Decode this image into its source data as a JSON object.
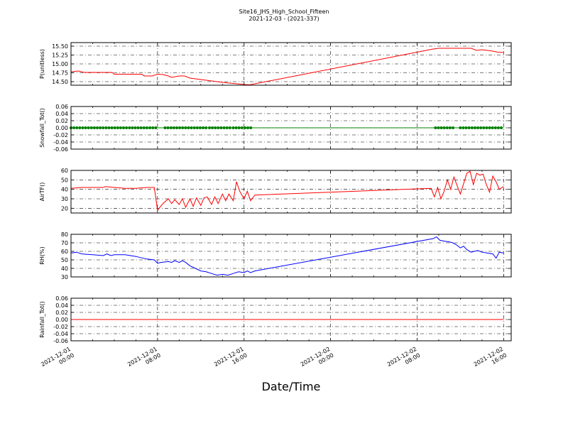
{
  "chart_data": {
    "title_line1": "Site16_JHS_High_School_Fifteen",
    "title_line2": "2021-12-03 - (2021-337)",
    "xlabel": "Date/Time",
    "x_range": [
      "2021-12-01 00:00",
      "2021-12-02 16:00"
    ],
    "x_ticks": [
      {
        "line1": "2021-12-01",
        "line2": "00:00",
        "hours": 0
      },
      {
        "line1": "2021-12-01",
        "line2": "08:00",
        "hours": 8
      },
      {
        "line1": "2021-12-01",
        "line2": "16:00",
        "hours": 16
      },
      {
        "line1": "2021-12-02",
        "line2": "00:00",
        "hours": 24
      },
      {
        "line1": "2021-12-02",
        "line2": "08:00",
        "hours": 32
      },
      {
        "line1": "2021-12-02",
        "line2": "16:00",
        "hours": 40
      }
    ],
    "grid": true,
    "panels": [
      {
        "type": "line",
        "ylabel": "P(unitless)",
        "ylim": [
          14.4,
          15.6
        ],
        "yticks": [
          "14.50",
          "14.75",
          "15.00",
          "15.25",
          "15.50"
        ],
        "ytick_values": [
          14.5,
          14.75,
          15.0,
          15.25,
          15.5
        ],
        "color": "#ff0000",
        "marker": false,
        "x": [
          0,
          0.7,
          1.2,
          2,
          3,
          3.8,
          4,
          5,
          6.5,
          6.8,
          7.5,
          8,
          8.5,
          9,
          9.3,
          10,
          10.5,
          11,
          12,
          13,
          14,
          15,
          16,
          16.5,
          33.5,
          34,
          36,
          37,
          37.5,
          38,
          39,
          39.5,
          40
        ],
        "y": [
          14.78,
          14.8,
          14.76,
          14.76,
          14.76,
          14.76,
          14.71,
          14.71,
          14.71,
          14.66,
          14.66,
          14.71,
          14.7,
          14.66,
          14.62,
          14.66,
          14.66,
          14.6,
          14.56,
          14.52,
          14.48,
          14.45,
          14.42,
          14.41,
          15.42,
          15.44,
          15.44,
          15.44,
          15.38,
          15.4,
          15.36,
          15.33,
          15.32
        ]
      },
      {
        "type": "scatter-line",
        "ylabel": "Snowfall_Tot()",
        "ylim": [
          -0.06,
          0.06
        ],
        "yticks": [
          "-0.06",
          "-0.04",
          "-0.02",
          "0.00",
          "0.02",
          "0.04",
          "0.06"
        ],
        "ytick_values": [
          -0.06,
          -0.04,
          -0.02,
          0.0,
          0.02,
          0.04,
          0.06
        ],
        "color": "#008000",
        "marker": true,
        "x": [
          0,
          40
        ],
        "y": [
          0,
          0
        ],
        "marker_ranges": [
          [
            0,
            8
          ],
          [
            8.7,
            12.7
          ],
          [
            12.8,
            14.7
          ],
          [
            15,
            16.8
          ],
          [
            33.7,
            35.5
          ],
          [
            36,
            40
          ]
        ],
        "marker_step": 0.27
      },
      {
        "type": "line",
        "ylabel": "AirTF()",
        "ylim": [
          15,
          60
        ],
        "yticks": [
          "20",
          "30",
          "40",
          "50",
          "60"
        ],
        "ytick_values": [
          20,
          30,
          40,
          50,
          60
        ],
        "color": "#ff0000",
        "marker": false,
        "x": [
          0,
          1,
          2,
          3,
          3.2,
          4,
          5,
          6,
          7,
          7.7,
          8,
          8.5,
          9,
          9.3,
          9.6,
          10,
          10.3,
          10.6,
          11,
          11.3,
          11.6,
          12,
          12.3,
          12.6,
          13,
          13.3,
          13.6,
          14,
          14.3,
          14.6,
          15,
          15.3,
          15.6,
          16,
          16.3,
          16.6,
          17,
          33.3,
          33.6,
          33.9,
          34.2,
          34.5,
          34.8,
          35.1,
          35.4,
          35.7,
          36,
          36.3,
          36.6,
          36.9,
          37.2,
          37.5,
          37.8,
          38.1,
          38.4,
          38.7,
          39,
          39.3,
          39.6,
          40
        ],
        "y": [
          41,
          42,
          42,
          42,
          43,
          42,
          41,
          41,
          42,
          42,
          18,
          25,
          30,
          25,
          29,
          24,
          30,
          21,
          30,
          22,
          31,
          23,
          31,
          32,
          24,
          32,
          25,
          35,
          28,
          35,
          28,
          48,
          38,
          30,
          38,
          28,
          34,
          41,
          32,
          42,
          30,
          38,
          50,
          40,
          53,
          44,
          35,
          46,
          57,
          59,
          45,
          57,
          55,
          56,
          45,
          37,
          54,
          48,
          40,
          43
        ]
      },
      {
        "type": "line",
        "ylabel": "RH(%)",
        "ylim": [
          30,
          80
        ],
        "yticks": [
          "30",
          "40",
          "50",
          "60",
          "70",
          "80"
        ],
        "ytick_values": [
          30,
          40,
          50,
          60,
          70,
          80
        ],
        "color": "#0000ff",
        "marker": false,
        "x": [
          0,
          0.5,
          1,
          2,
          3,
          3.3,
          3.7,
          4,
          5,
          6,
          7,
          7.7,
          8,
          8.3,
          9,
          9.3,
          9.6,
          10,
          10.3,
          10.6,
          11,
          11.5,
          12,
          12.5,
          13,
          13.5,
          14,
          14.5,
          15,
          15.5,
          16,
          16.3,
          16.6,
          17,
          33.5,
          33.8,
          34.1,
          34.5,
          35,
          35.3,
          35.6,
          36,
          36.3,
          36.6,
          37,
          37.3,
          37.6,
          38,
          38.5,
          39,
          39.3,
          39.6,
          40
        ],
        "y": [
          58,
          59,
          57,
          56,
          55,
          57,
          55,
          56,
          56,
          54,
          51,
          50,
          46,
          47,
          48,
          47,
          49,
          47,
          49,
          47,
          43,
          40,
          37,
          36,
          34,
          32,
          33,
          32,
          34,
          36,
          35,
          37,
          35,
          37,
          75,
          77,
          73,
          72,
          71,
          70,
          68,
          64,
          66,
          62,
          59,
          60,
          61,
          59,
          58,
          57,
          52,
          59,
          58
        ]
      },
      {
        "type": "line",
        "ylabel": "Rainfall_Tot()",
        "ylim": [
          -0.06,
          0.06
        ],
        "yticks": [
          "-0.06",
          "-0.04",
          "-0.02",
          "0.00",
          "0.02",
          "0.04",
          "0.06"
        ],
        "ytick_values": [
          -0.06,
          -0.04,
          -0.02,
          0.0,
          0.02,
          0.04,
          0.06
        ],
        "color": "#ff0000",
        "marker": false,
        "x": [
          0,
          40
        ],
        "y": [
          0,
          0
        ]
      }
    ]
  }
}
